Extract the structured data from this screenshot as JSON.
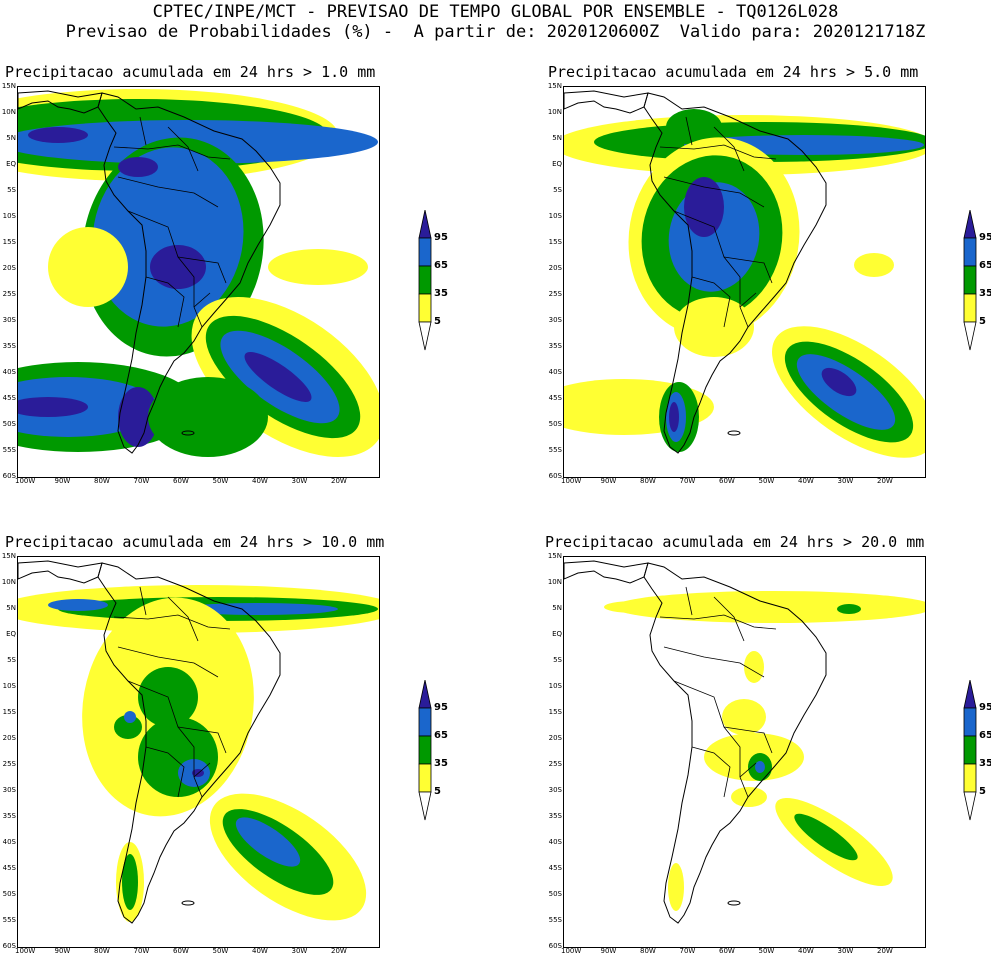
{
  "header": {
    "line1": "CPTEC/INPE/MCT - PREVISAO DE TEMPO GLOBAL POR ENSEMBLE - TQ0126L028",
    "line2": "Previsao de Probabilidades (%) -  A partir de: 2020120600Z  Valido para: 2020121718Z"
  },
  "colorscale": {
    "levels": [
      "5",
      "35",
      "65",
      "95"
    ],
    "colors": [
      "#ffff33",
      "#009900",
      "#1a66cc",
      "#2a1c99"
    ]
  },
  "axes": {
    "lat_labels": [
      "15N",
      "10N",
      "5N",
      "EQ",
      "5S",
      "10S",
      "15S",
      "20S",
      "25S",
      "30S",
      "35S",
      "40S",
      "45S",
      "50S",
      "55S",
      "60S"
    ],
    "lon_labels": [
      "100W",
      "90W",
      "80W",
      "70W",
      "60W",
      "50W",
      "40W",
      "30W",
      "20W"
    ]
  },
  "panels": [
    {
      "title": "Precipitacao acumulada em 24 hrs > 1.0 mm"
    },
    {
      "title": "Precipitacao acumulada em 24 hrs > 5.0 mm"
    },
    {
      "title": "Precipitacao acumulada em 24 hrs > 10.0 mm"
    },
    {
      "title": "Precipitacao acumulada em 24 hrs > 20.0 mm"
    }
  ]
}
